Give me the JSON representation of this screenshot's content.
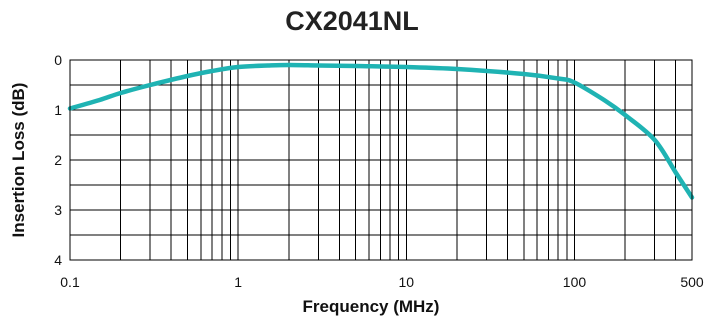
{
  "chart_data": {
    "type": "line",
    "title": "CX2041NL",
    "xlabel": "Frequency (MHz)",
    "ylabel": "Insertion Loss (dB)",
    "x_scale": "log",
    "xlim": [
      0.1,
      500
    ],
    "ylim": [
      0,
      4
    ],
    "y_inverted": true,
    "x_ticks": [
      {
        "value": 0.1,
        "label": "0.1"
      },
      {
        "value": 1,
        "label": "1"
      },
      {
        "value": 10,
        "label": "10"
      },
      {
        "value": 100,
        "label": "100"
      },
      {
        "value": 500,
        "label": "500"
      }
    ],
    "y_ticks": [
      {
        "value": 0,
        "label": "0"
      },
      {
        "value": 1,
        "label": "1"
      },
      {
        "value": 2,
        "label": "2"
      },
      {
        "value": 3,
        "label": "3"
      },
      {
        "value": 4,
        "label": "4"
      }
    ],
    "grid": true,
    "line_color": "#1fb3b3",
    "series": [
      {
        "x": [
          0.1,
          0.15,
          0.2,
          0.3,
          0.5,
          0.7,
          1,
          1.5,
          2,
          3,
          5,
          10,
          20,
          50,
          80,
          100,
          150,
          200,
          300,
          400,
          500
        ],
        "y": [
          0.97,
          0.8,
          0.66,
          0.5,
          0.32,
          0.22,
          0.14,
          0.11,
          0.1,
          0.11,
          0.12,
          0.14,
          0.18,
          0.28,
          0.37,
          0.45,
          0.8,
          1.1,
          1.6,
          2.25,
          2.75
        ]
      }
    ]
  }
}
